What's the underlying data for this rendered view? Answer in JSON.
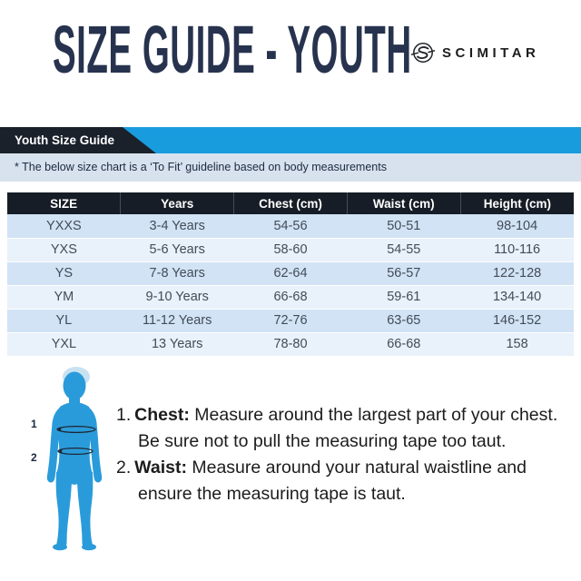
{
  "header": {
    "title": "SIZE GUIDE - YOUTH",
    "brand": "SCIMITAR"
  },
  "banner": {
    "label": "Youth Size Guide",
    "note": "* The below size chart is a ‘To Fit’ guideline based on body measurements"
  },
  "table": {
    "columns": [
      "SIZE",
      "Years",
      "Chest (cm)",
      "Waist (cm)",
      "Height (cm)"
    ],
    "rows": [
      [
        "YXXS",
        "3-4 Years",
        "54-56",
        "50-51",
        "98-104"
      ],
      [
        "YXS",
        "5-6 Years",
        "58-60",
        "54-55",
        "110-116"
      ],
      [
        "YS",
        "7-8 Years",
        "62-64",
        "56-57",
        "122-128"
      ],
      [
        "YM",
        "9-10 Years",
        "66-68",
        "59-61",
        "134-140"
      ],
      [
        "YL",
        "11-12 Years",
        "72-76",
        "63-65",
        "146-152"
      ],
      [
        "YXL",
        "13 Years",
        "78-80",
        "66-68",
        "158"
      ]
    ]
  },
  "figure": {
    "markers": [
      "1",
      "2"
    ]
  },
  "instructions": [
    {
      "num": "1.",
      "term": "Chest:",
      "text": "Measure around the largest part of your chest. Be sure not to pull the measuring tape too taut."
    },
    {
      "num": "2.",
      "term": "Waist:",
      "text": "Measure around your natural waistline and ensure the measuring tape is taut."
    }
  ],
  "colors": {
    "title_navy": "#27334e",
    "dark_navy": "#171d26",
    "accent_blue": "#199cde",
    "note_band": "#d8e2ee",
    "row_odd": "#d2e3f5",
    "row_even": "#e9f1fa",
    "figure_blue": "#2a9bda",
    "hair_blue": "#c9e2f2"
  }
}
